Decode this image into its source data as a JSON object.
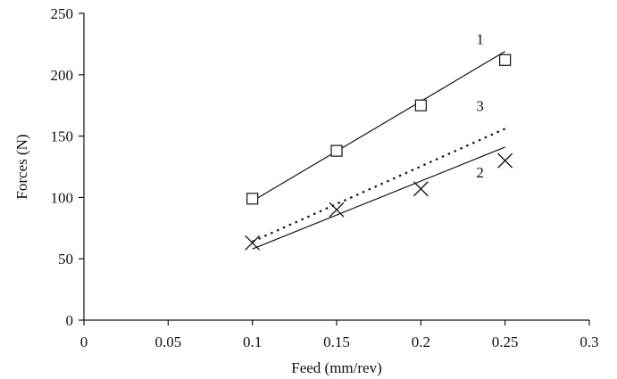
{
  "chart_data": {
    "type": "scatter",
    "xlabel": "Feed (mm/rev)",
    "ylabel": "Forces (N)",
    "xlim": [
      0,
      0.3
    ],
    "ylim": [
      0,
      250
    ],
    "x_ticks": [
      "0",
      "0.05",
      "0.1",
      "0.15",
      "0.2",
      "0.25",
      "0.3"
    ],
    "y_ticks": [
      "0",
      "50",
      "100",
      "150",
      "200",
      "250"
    ],
    "grid": false,
    "legend": "none",
    "series": [
      {
        "label": "1",
        "marker": "square",
        "line": "solid",
        "points": [
          [
            0.1,
            99
          ],
          [
            0.15,
            138
          ],
          [
            0.2,
            175
          ],
          [
            0.25,
            212
          ]
        ],
        "fit": [
          [
            0.1,
            97
          ],
          [
            0.25,
            219
          ]
        ]
      },
      {
        "label": "2",
        "marker": "x",
        "line": "solid",
        "points": [
          [
            0.1,
            63
          ],
          [
            0.15,
            90
          ],
          [
            0.2,
            107
          ],
          [
            0.25,
            130
          ]
        ],
        "fit": [
          [
            0.1,
            58
          ],
          [
            0.25,
            141
          ]
        ]
      },
      {
        "label": "3",
        "marker": "none",
        "line": "dotted",
        "points": [],
        "fit": [
          [
            0.1,
            64
          ],
          [
            0.25,
            156
          ]
        ]
      }
    ]
  }
}
